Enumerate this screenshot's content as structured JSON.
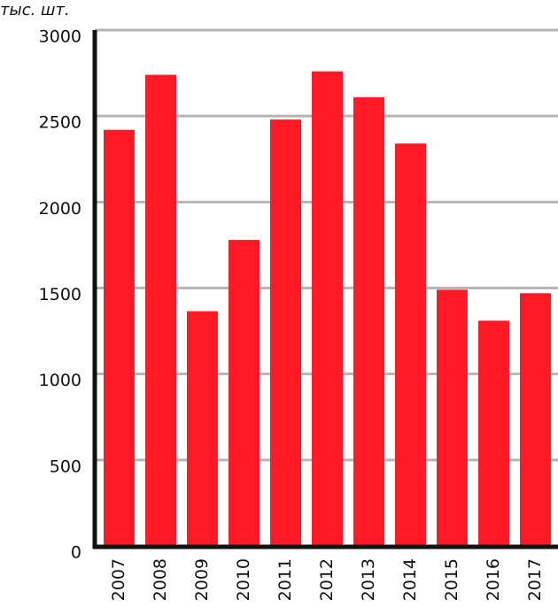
{
  "chart_data": {
    "type": "bar",
    "y_label": "тыс. шт.",
    "categories": [
      "2007",
      "2008",
      "2009",
      "2010",
      "2011",
      "2012",
      "2013",
      "2014",
      "2015",
      "2016",
      "2017"
    ],
    "values": [
      2420,
      2740,
      1365,
      1780,
      2480,
      2760,
      2610,
      2340,
      1490,
      1310,
      1470
    ],
    "color": "#ff1a25",
    "ylim": [
      0,
      3000
    ],
    "yticks": [
      0,
      500,
      1000,
      1500,
      2000,
      2500,
      3000
    ],
    "grid": true
  }
}
